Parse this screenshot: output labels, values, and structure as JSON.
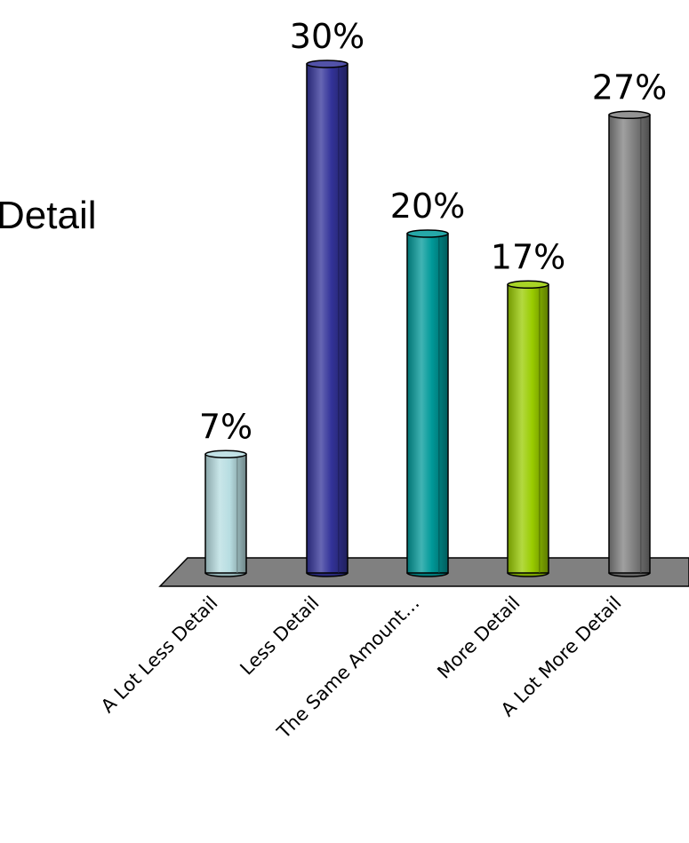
{
  "side_text": "Detail",
  "chart_data": {
    "type": "bar",
    "categories": [
      "A Lot Less Detail",
      "Less Detail",
      "The Same Amount…",
      "More Detail",
      "A Lot More Detail"
    ],
    "values": [
      7,
      30,
      20,
      17,
      27
    ],
    "data_labels": [
      "7%",
      "30%",
      "20%",
      "17%",
      "27%"
    ],
    "colors": [
      "#b7dde1",
      "#333399",
      "#009999",
      "#99cc00",
      "#808080"
    ],
    "floor_color": "#808080",
    "unit": "%",
    "ylim": [
      0,
      30
    ],
    "legend": "none",
    "grid": false,
    "style": "3d-cylinder"
  }
}
